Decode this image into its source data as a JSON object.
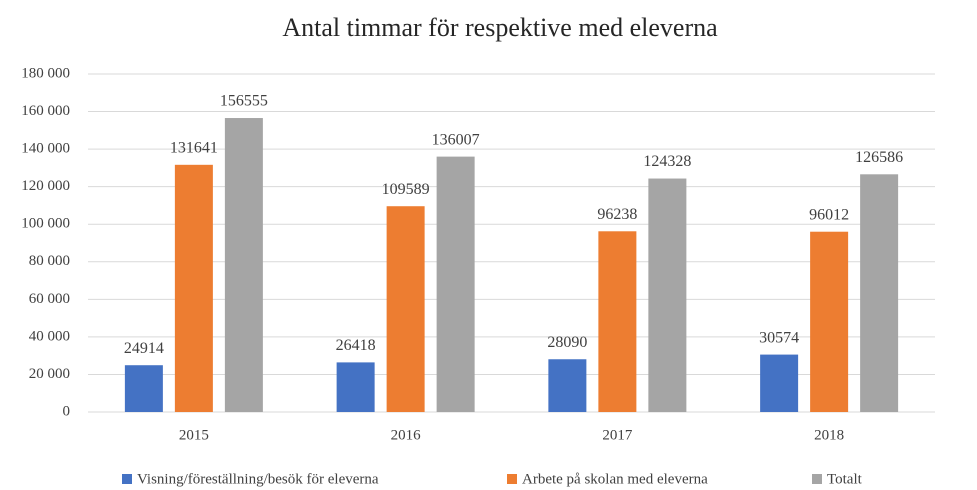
{
  "chart_data": {
    "type": "bar",
    "title": "Antal timmar för respektive med eleverna",
    "categories": [
      "2015",
      "2016",
      "2017",
      "2018"
    ],
    "series": [
      {
        "name": "Visning/föreställning/besök för eleverna",
        "color": "#4472c4",
        "values": [
          24914,
          26418,
          28090,
          30574
        ]
      },
      {
        "name": "Arbete på skolan med eleverna",
        "color": "#ed7d31",
        "values": [
          131641,
          109589,
          96238,
          96012
        ]
      },
      {
        "name": "Totalt",
        "color": "#a5a5a5",
        "values": [
          156555,
          136007,
          124328,
          126586
        ]
      }
    ],
    "ylim": [
      0,
      180000
    ],
    "yticks": [
      0,
      {
        "value": 20000,
        "label": "20 000"
      },
      {
        "value": 40000,
        "label": "40 000"
      },
      {
        "value": 60000,
        "label": "60 000"
      },
      {
        "value": 80000,
        "label": "80 000"
      },
      {
        "value": 100000,
        "label": "100 000"
      },
      {
        "value": 120000,
        "label": "120 000"
      },
      {
        "value": 140000,
        "label": "140 000"
      },
      {
        "value": 160000,
        "label": "160 000"
      },
      {
        "value": 180000,
        "label": "180 000"
      }
    ],
    "grid": true,
    "legend": "bottom"
  }
}
